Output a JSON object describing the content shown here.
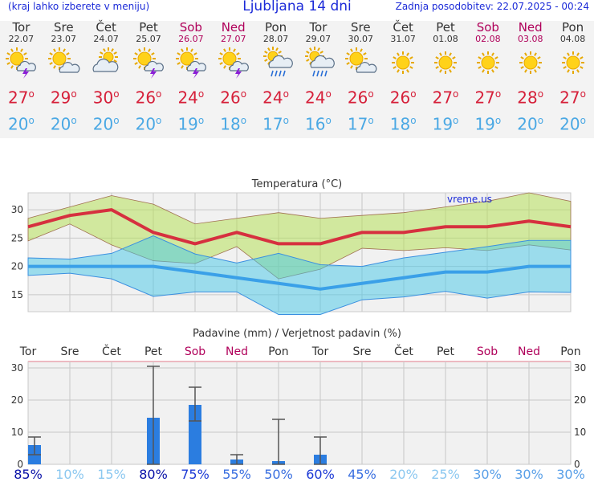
{
  "header": {
    "menu_hint": "(kraj lahko izberete v meniju)",
    "title": "Ljubljana 14 dni",
    "updated": "Zadnja posodobitev: 22.07.2025 - 00:24"
  },
  "colors": {
    "header_text": "#1b2ad8",
    "weekend": "#b0005a",
    "tmax": "#d6203a",
    "tmin": "#4aa8e4",
    "rain_bar": "#2b7de0"
  },
  "days": [
    {
      "name": "Tor",
      "date": "22.07",
      "weekend": false,
      "icon": "sun-cloud-thunder-icon",
      "tmax": "27",
      "tmin": "20"
    },
    {
      "name": "Sre",
      "date": "23.07",
      "weekend": false,
      "icon": "sun-cloud-icon",
      "tmax": "29",
      "tmin": "20"
    },
    {
      "name": "Čet",
      "date": "24.07",
      "weekend": false,
      "icon": "cloud-sun-icon",
      "tmax": "30",
      "tmin": "20"
    },
    {
      "name": "Pet",
      "date": "25.07",
      "weekend": false,
      "icon": "sun-cloud-thunder-icon",
      "tmax": "26",
      "tmin": "20"
    },
    {
      "name": "Sob",
      "date": "26.07",
      "weekend": true,
      "icon": "sun-cloud-thunder-icon",
      "tmax": "24",
      "tmin": "19"
    },
    {
      "name": "Ned",
      "date": "27.07",
      "weekend": true,
      "icon": "sun-cloud-thunder-icon",
      "tmax": "26",
      "tmin": "18"
    },
    {
      "name": "Pon",
      "date": "28.07",
      "weekend": false,
      "icon": "cloud-rain-sun-icon",
      "tmax": "24",
      "tmin": "17"
    },
    {
      "name": "Tor",
      "date": "29.07",
      "weekend": false,
      "icon": "cloud-rain-sun-icon",
      "tmax": "24",
      "tmin": "16"
    },
    {
      "name": "Sre",
      "date": "30.07",
      "weekend": false,
      "icon": "sun-cloud-icon",
      "tmax": "26",
      "tmin": "17"
    },
    {
      "name": "Čet",
      "date": "31.07",
      "weekend": false,
      "icon": "sun-icon",
      "tmax": "26",
      "tmin": "18"
    },
    {
      "name": "Pet",
      "date": "01.08",
      "weekend": false,
      "icon": "sun-icon",
      "tmax": "27",
      "tmin": "19"
    },
    {
      "name": "Sob",
      "date": "02.08",
      "weekend": true,
      "icon": "sun-icon",
      "tmax": "27",
      "tmin": "19"
    },
    {
      "name": "Ned",
      "date": "03.08",
      "weekend": true,
      "icon": "sun-icon",
      "tmax": "28",
      "tmin": "20"
    },
    {
      "name": "Pon",
      "date": "04.08",
      "weekend": false,
      "icon": "sun-icon",
      "tmax": "27",
      "tmin": "20"
    }
  ],
  "chart_data": [
    {
      "type": "line",
      "title": "Temperatura (°C)",
      "watermark": "vreme.us",
      "categories": [
        "Tor",
        "Sre",
        "Čet",
        "Pet",
        "Sob",
        "Ned",
        "Pon",
        "Tor",
        "Sre",
        "Čet",
        "Pet",
        "Sob",
        "Ned",
        "Pon"
      ],
      "ylim": [
        12,
        33
      ],
      "yticks": [
        15,
        20,
        25,
        30
      ],
      "grid": true,
      "series": [
        {
          "values": [
            27,
            29,
            30,
            26,
            24,
            26,
            24,
            24,
            26,
            26,
            27,
            27,
            28,
            27
          ],
          "color": "#d6303f"
        },
        {
          "values": [
            20,
            20,
            20,
            20,
            19,
            18,
            17,
            16,
            17,
            18,
            19,
            19,
            20,
            20
          ],
          "color": "#3aa0e8"
        }
      ],
      "max_band_upper": [
        28.5,
        30.5,
        32.5,
        31,
        27.5,
        28.5,
        29.5,
        28.5,
        29,
        29.5,
        30.5,
        31.5,
        33,
        31.5
      ],
      "max_band_lower": [
        24.5,
        27.5,
        23.8,
        21,
        20.5,
        23.5,
        17.8,
        19.5,
        23.2,
        22.8,
        23.3,
        22.8,
        23.8,
        22.9
      ],
      "min_band_upper": [
        21.5,
        21.3,
        22.3,
        25.4,
        22.2,
        20.6,
        22.3,
        20.3,
        20,
        21.5,
        22.5,
        23.5,
        24.6,
        24.6
      ],
      "min_band_lower": [
        18.4,
        18.8,
        17.8,
        14.7,
        15.5,
        15.5,
        11.5,
        11.5,
        14.1,
        14.6,
        15.6,
        14.4,
        15.5,
        15.4
      ]
    },
    {
      "type": "bar",
      "title": "Padavine (mm) / Verjetnost padavin (%)",
      "categories": [
        "Tor",
        "Sre",
        "Čet",
        "Pet",
        "Sob",
        "Ned",
        "Pon",
        "Tor",
        "Sre",
        "Čet",
        "Pet",
        "Sob",
        "Ned",
        "Pon"
      ],
      "ylim": [
        0,
        32
      ],
      "yticks": [
        0,
        10,
        20,
        30
      ],
      "values": [
        6,
        0,
        0,
        14.5,
        18.5,
        1.5,
        1,
        3,
        0,
        0,
        0,
        0,
        0,
        0
      ],
      "error_low": [
        3,
        null,
        null,
        0,
        13.5,
        0,
        0,
        0,
        null,
        null,
        null,
        null,
        null,
        null
      ],
      "error_high": [
        8.5,
        null,
        null,
        30.5,
        24,
        3,
        14,
        8.5,
        null,
        null,
        null,
        null,
        null,
        null
      ],
      "probability": [
        "85%",
        "10%",
        "15%",
        "80%",
        "75%",
        "55%",
        "50%",
        "60%",
        "45%",
        "20%",
        "25%",
        "30%",
        "30%",
        "30%"
      ],
      "probability_values": [
        85,
        10,
        15,
        80,
        75,
        55,
        50,
        60,
        45,
        20,
        25,
        30,
        30,
        30
      ],
      "grid": true
    }
  ]
}
